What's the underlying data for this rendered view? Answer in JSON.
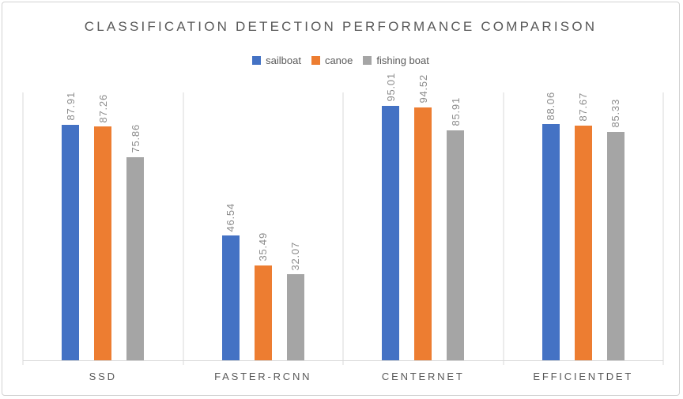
{
  "frame": {
    "background": "#ffffff",
    "border_color": "#d2d2d2"
  },
  "chart_data": {
    "type": "bar",
    "title": "CLASSIFICATION DETECTION PERFORMANCE COMPARISON",
    "categories": [
      "SSD",
      "FASTER-RCNN",
      "CENTERNET",
      "EFFICIENTDET"
    ],
    "series": [
      {
        "name": "sailboat",
        "color": "#4472C4",
        "values": [
          87.91,
          46.54,
          95.01,
          88.06
        ]
      },
      {
        "name": "canoe",
        "color": "#ED7D31",
        "values": [
          87.26,
          35.49,
          94.52,
          87.67
        ]
      },
      {
        "name": "fishing boat",
        "color": "#A5A5A5",
        "values": [
          75.86,
          32.07,
          85.91,
          85.33
        ]
      }
    ],
    "ylim": [
      0,
      100
    ],
    "xlabel": "",
    "ylabel": "",
    "grid": "vertical category separator lines only, y-axis hidden",
    "legend_position": "top-center",
    "data_labels": "value above each bar, rotated 90 degrees, 2 decimals",
    "styles": {
      "separator_line_color": "#d9d9d9",
      "axis_line_color": "#d9d9d9",
      "title_color": "#595959",
      "category_label_color": "#595959",
      "value_label_color": "#8c8c8c"
    }
  }
}
